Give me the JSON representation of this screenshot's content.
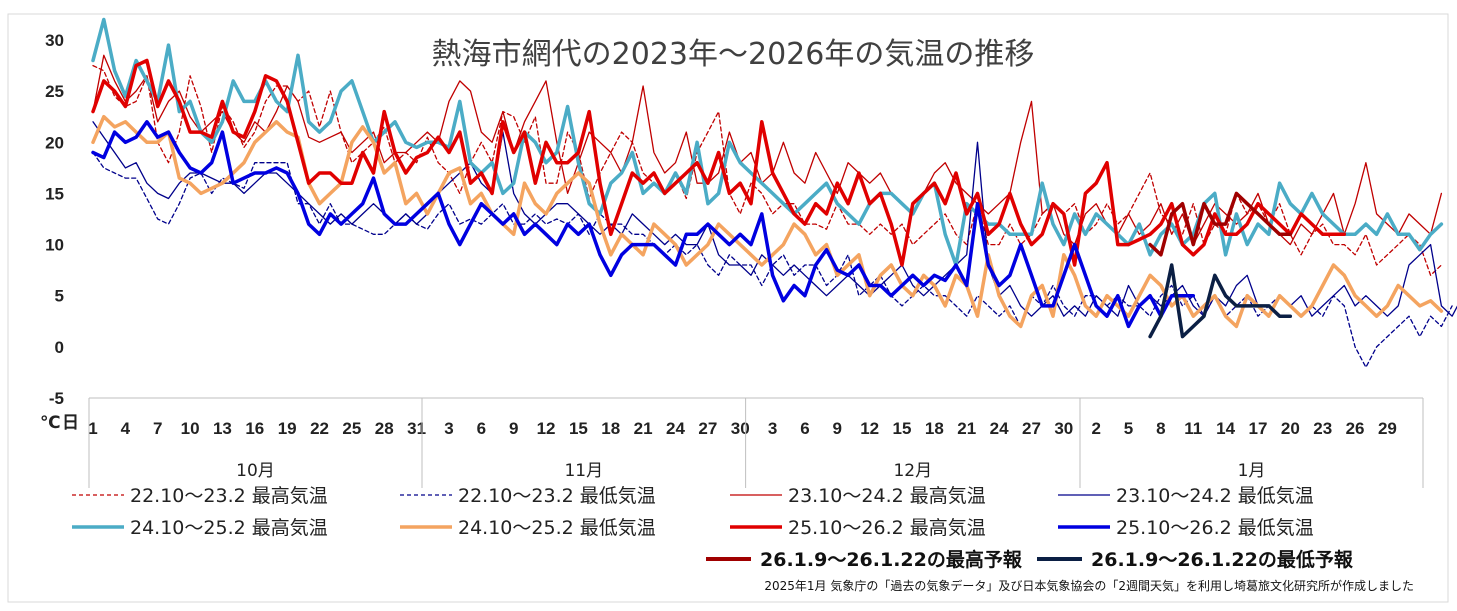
{
  "chart_data": {
    "type": "line",
    "title": "熱海市網代の2023年～2026年の気温の推移",
    "ylabel": "℃",
    "xlabel": "日",
    "ylim": [
      -5,
      30
    ],
    "yticks": [
      30,
      25,
      20,
      15,
      10,
      5,
      0,
      -5
    ],
    "x_tick_labels": [
      "1",
      "4",
      "7",
      "10",
      "13",
      "16",
      "19",
      "22",
      "25",
      "28",
      "31",
      "3",
      "6",
      "9",
      "12",
      "15",
      "18",
      "21",
      "24",
      "27",
      "30",
      "3",
      "6",
      "9",
      "12",
      "15",
      "18",
      "21",
      "24",
      "27",
      "30",
      "2",
      "5",
      "8",
      "11",
      "14",
      "17",
      "20",
      "23",
      "26",
      "29"
    ],
    "months": [
      "10月",
      "11月",
      "12月",
      "1月"
    ],
    "footnote": "2025年1月 気象庁の「過去の気象データ」及び日本気象協会の「2週間天気」を利用し埼葛旅文化研究所が作成しました",
    "series": [
      {
        "name": "22.10～23.2 最高気温",
        "color": "#c00000",
        "style": "dashed",
        "width": 1.3,
        "start": 0,
        "values": [
          27.5,
          27,
          24.5,
          23.5,
          24,
          26.5,
          20,
          18,
          21,
          26.5,
          23.5,
          19,
          23.5,
          22,
          19.5,
          21,
          24,
          25.5,
          25.5,
          24,
          25,
          21.5,
          25,
          21,
          18,
          19,
          20,
          21.5,
          18,
          19,
          18,
          20.5,
          18,
          17,
          15,
          18,
          20,
          18,
          23,
          22.5,
          20,
          22.5,
          16,
          16,
          21,
          19,
          14.5,
          17,
          19,
          21,
          20,
          17,
          16,
          15,
          17,
          14.5,
          19,
          21,
          23,
          15,
          13,
          16,
          15,
          13,
          14,
          14,
          12,
          12,
          11.5,
          14,
          12,
          12,
          11,
          12,
          11,
          12,
          10,
          11,
          12,
          13,
          11,
          10,
          14,
          10,
          10,
          12,
          10,
          11,
          13,
          14,
          13,
          14,
          11,
          12,
          14,
          12,
          13,
          15,
          17,
          13,
          12,
          11,
          14,
          10,
          12,
          11,
          15,
          13,
          14,
          12,
          14,
          11,
          9,
          11,
          12,
          10,
          10,
          9,
          11,
          8,
          9,
          10,
          11,
          10,
          7,
          8
        ]
      },
      {
        "name": "22.10～23.2 最低気温",
        "color": "#00008b",
        "style": "dashed",
        "width": 1.3,
        "start": 0,
        "values": [
          19,
          17.5,
          17,
          16.5,
          16.5,
          14.5,
          12.5,
          12,
          14,
          16.5,
          17,
          15,
          16.5,
          16,
          15.5,
          18,
          18,
          18,
          18,
          14,
          14,
          12,
          14,
          12,
          12,
          11.5,
          11,
          11,
          12,
          13,
          12,
          11.5,
          13,
          14,
          12,
          12.5,
          12,
          13,
          14,
          12,
          12,
          13,
          12,
          12.5,
          12,
          13,
          11,
          13,
          12,
          12,
          11,
          11,
          10,
          9,
          10,
          9,
          10,
          8,
          7,
          9,
          8,
          8,
          6,
          8,
          9,
          7,
          8,
          8,
          6,
          7,
          9,
          5,
          6,
          7,
          5,
          4,
          5,
          6,
          5,
          5,
          4,
          3,
          5,
          4,
          3,
          4,
          2,
          5,
          4,
          6,
          4,
          3,
          5,
          5,
          4,
          5,
          4,
          4,
          3,
          5,
          6,
          4,
          5,
          3,
          5,
          3,
          4,
          5,
          3,
          4,
          5,
          4,
          3,
          4,
          3,
          5,
          4,
          0,
          -2,
          0,
          1,
          2,
          3,
          1,
          3,
          2,
          4
        ]
      },
      {
        "name": "23.10～24.2 最高気温",
        "color": "#c00000",
        "style": "solid",
        "width": 1.3,
        "start": 0,
        "values": [
          23,
          28.5,
          26,
          24,
          25,
          26.5,
          22,
          24,
          25,
          22.5,
          21,
          22,
          23,
          21,
          20,
          22,
          21,
          23,
          25.5,
          24,
          20.5,
          20,
          20.5,
          21,
          19,
          20,
          21,
          18,
          19,
          19,
          20,
          21,
          20,
          24,
          26,
          25,
          21,
          20,
          23,
          19,
          22,
          24,
          26,
          20,
          15,
          18,
          21,
          20,
          19,
          17,
          20,
          25.5,
          19,
          17,
          18,
          21,
          16,
          16,
          17,
          21,
          18,
          19,
          16,
          17,
          20,
          17,
          16,
          19,
          17,
          15,
          18,
          17,
          16,
          17,
          15,
          14,
          13,
          15,
          17,
          18,
          16,
          15,
          14,
          13,
          14,
          15,
          20,
          24,
          13,
          14,
          11,
          10,
          13,
          14,
          12,
          11,
          13,
          11,
          12,
          14,
          11,
          13,
          10,
          12,
          14,
          13,
          12,
          13,
          15,
          12,
          11,
          10,
          12,
          11,
          13,
          15,
          11,
          14,
          18,
          13,
          12,
          11,
          13,
          12,
          11,
          15
        ]
      },
      {
        "name": "23.10～24.2 最低気温",
        "color": "#00008b",
        "style": "solid",
        "width": 1.3,
        "start": 0,
        "values": [
          22,
          20.5,
          19,
          17.5,
          18,
          16,
          15,
          14.5,
          16,
          17,
          17,
          16.5,
          16,
          16,
          15,
          16,
          17,
          17,
          16,
          15,
          14,
          13,
          12,
          13,
          12,
          13,
          14,
          13,
          12,
          13,
          12,
          13,
          15,
          16,
          17,
          18,
          16,
          15,
          21,
          15,
          13,
          12,
          13,
          14,
          14,
          13,
          12,
          11,
          12,
          11,
          13,
          12,
          11,
          10,
          11,
          10,
          10,
          12,
          9,
          8,
          8,
          7,
          9,
          8,
          7,
          8,
          7,
          6,
          5,
          6,
          7,
          6,
          5,
          6,
          7,
          8,
          6,
          5,
          6,
          7,
          8,
          9,
          20,
          8,
          5,
          6,
          4,
          3,
          4,
          5,
          3,
          4,
          3,
          5,
          4,
          3,
          6,
          4,
          5,
          4,
          5,
          6,
          4,
          3,
          5,
          4,
          6,
          7,
          4,
          3,
          5,
          4,
          5,
          3,
          4,
          5,
          6,
          4,
          5,
          4,
          3,
          4,
          8,
          9,
          10,
          4,
          3,
          5
        ]
      },
      {
        "name": "24.10～25.2 最高気温",
        "color": "#4bacc6",
        "style": "solid",
        "width": 3.5,
        "start": 0,
        "values": [
          28,
          32,
          27,
          24.5,
          28,
          26,
          24,
          29.5,
          23,
          24,
          21,
          20,
          22,
          26,
          24,
          24,
          26,
          24,
          23,
          28.5,
          22,
          21,
          22,
          25,
          26,
          23,
          20,
          21,
          22,
          20,
          19.5,
          20,
          20,
          19.5,
          24,
          18,
          17,
          18,
          15,
          16,
          21,
          20,
          18,
          19,
          23.5,
          18,
          14,
          13,
          16,
          17,
          19,
          15,
          16,
          15,
          17,
          15,
          20,
          14,
          15,
          20,
          18,
          17,
          16,
          15,
          14,
          13,
          14,
          15,
          16,
          14,
          13,
          12,
          14,
          15,
          15,
          14,
          13,
          15,
          16,
          11,
          8,
          14,
          13,
          12,
          12,
          11,
          11,
          11,
          16,
          12,
          10,
          13,
          11,
          13,
          12,
          11,
          10,
          12,
          9,
          11,
          12,
          10,
          11,
          14,
          15,
          9,
          13,
          10,
          12,
          11,
          16,
          14,
          13,
          15,
          13,
          12,
          11,
          11,
          12,
          11,
          13,
          11,
          11,
          9.5,
          11,
          12
        ]
      },
      {
        "name": "24.10～25.2 最低気温",
        "color": "#f4a460",
        "style": "solid",
        "width": 3.5,
        "start": 0,
        "values": [
          20,
          22.5,
          21.5,
          22,
          21,
          20,
          20,
          21,
          16.5,
          16,
          15,
          15.5,
          16,
          17,
          18,
          20,
          21,
          22,
          21,
          20.5,
          16,
          14,
          15,
          16,
          20,
          21.5,
          20,
          17,
          18,
          14,
          15,
          13,
          15,
          17,
          17.5,
          14,
          15,
          13,
          12,
          11,
          16,
          14,
          13,
          15,
          16,
          17,
          16,
          12,
          9,
          11,
          10,
          9,
          12,
          11,
          10,
          8,
          9,
          10,
          12,
          11,
          10,
          9,
          8,
          9,
          10,
          12,
          11,
          9,
          10,
          7,
          8,
          9,
          5,
          7,
          8,
          6,
          5,
          7,
          6,
          4,
          7,
          6,
          3,
          9,
          5,
          3,
          2,
          5,
          6,
          3,
          9,
          7,
          4,
          3,
          5,
          4,
          3,
          5,
          7,
          6,
          4,
          5,
          3,
          4,
          5,
          3,
          2,
          5,
          4,
          3,
          5,
          4,
          3,
          4,
          6,
          8,
          7,
          5,
          4,
          3,
          4,
          6,
          5,
          4,
          4.5,
          3.5
        ]
      },
      {
        "name": "25.10～26.2 最高気温",
        "color": "#e00000",
        "style": "solid",
        "width": 3.5,
        "start": 0,
        "values": [
          23,
          26,
          25,
          23.5,
          27.5,
          28,
          23.5,
          26,
          24,
          21,
          21,
          20.5,
          24,
          21,
          20.5,
          23,
          26.5,
          26,
          24,
          20,
          16,
          17,
          17,
          16,
          16,
          19,
          17,
          23,
          19,
          17,
          18.5,
          19,
          20.5,
          19,
          21,
          16,
          17,
          15,
          22,
          19,
          21,
          16,
          20,
          18,
          18,
          19,
          23,
          16,
          11,
          14,
          17,
          16,
          17,
          15,
          16,
          17,
          18,
          16,
          19,
          15,
          16,
          14,
          22,
          17,
          15,
          13,
          12,
          14,
          13,
          16,
          14,
          17,
          14,
          15,
          12,
          8,
          14,
          15,
          16,
          14,
          17,
          13,
          15,
          11,
          12,
          15,
          12,
          10,
          11,
          14,
          13,
          8,
          15,
          16,
          18,
          10,
          10,
          10.5,
          11,
          12,
          14,
          10,
          9,
          10,
          13,
          11,
          11,
          12,
          14,
          13,
          12,
          11,
          13,
          12,
          11,
          11,
          11
        ]
      },
      {
        "name": "25.10～26.2 最低気温",
        "color": "#0000e0",
        "style": "solid",
        "width": 3.5,
        "start": 0,
        "values": [
          19,
          18.5,
          21,
          20,
          20.5,
          22,
          20.5,
          21,
          19,
          17.5,
          17,
          18,
          21,
          16,
          16.5,
          17,
          17,
          17.5,
          17,
          15,
          12,
          11,
          13,
          12,
          13,
          14,
          16.5,
          13,
          12,
          12,
          13,
          14,
          15,
          12,
          10,
          12,
          14,
          13,
          12,
          13,
          11,
          12,
          11,
          10,
          12,
          11,
          12,
          9,
          7,
          9,
          10,
          10,
          10,
          9,
          8,
          11,
          11,
          12,
          11,
          10,
          11,
          10,
          13,
          7,
          4.5,
          6,
          5,
          8,
          9.5,
          7.5,
          7,
          8,
          6,
          6,
          5,
          6,
          7,
          6,
          7,
          6.5,
          8,
          6,
          14,
          8,
          6,
          7,
          10,
          7,
          4,
          4,
          7,
          10,
          7,
          4,
          3,
          5,
          2,
          4,
          5,
          3,
          5,
          5,
          5
        ]
      },
      {
        "name": "26.1.9～26.1.22の最高予報",
        "color": "#a00000",
        "style": "solid",
        "width": 3.5,
        "start": 98,
        "values": [
          10,
          9,
          13,
          14,
          10,
          14,
          12,
          12,
          15,
          14,
          13,
          12,
          11,
          11
        ]
      },
      {
        "name": "26.1.9～26.1.22の最低予報",
        "color": "#0b1f44",
        "style": "solid",
        "width": 3.5,
        "start": 98,
        "values": [
          1,
          3,
          8,
          1,
          2,
          3,
          7,
          5,
          4,
          4,
          4,
          4,
          3,
          3
        ]
      }
    ]
  }
}
